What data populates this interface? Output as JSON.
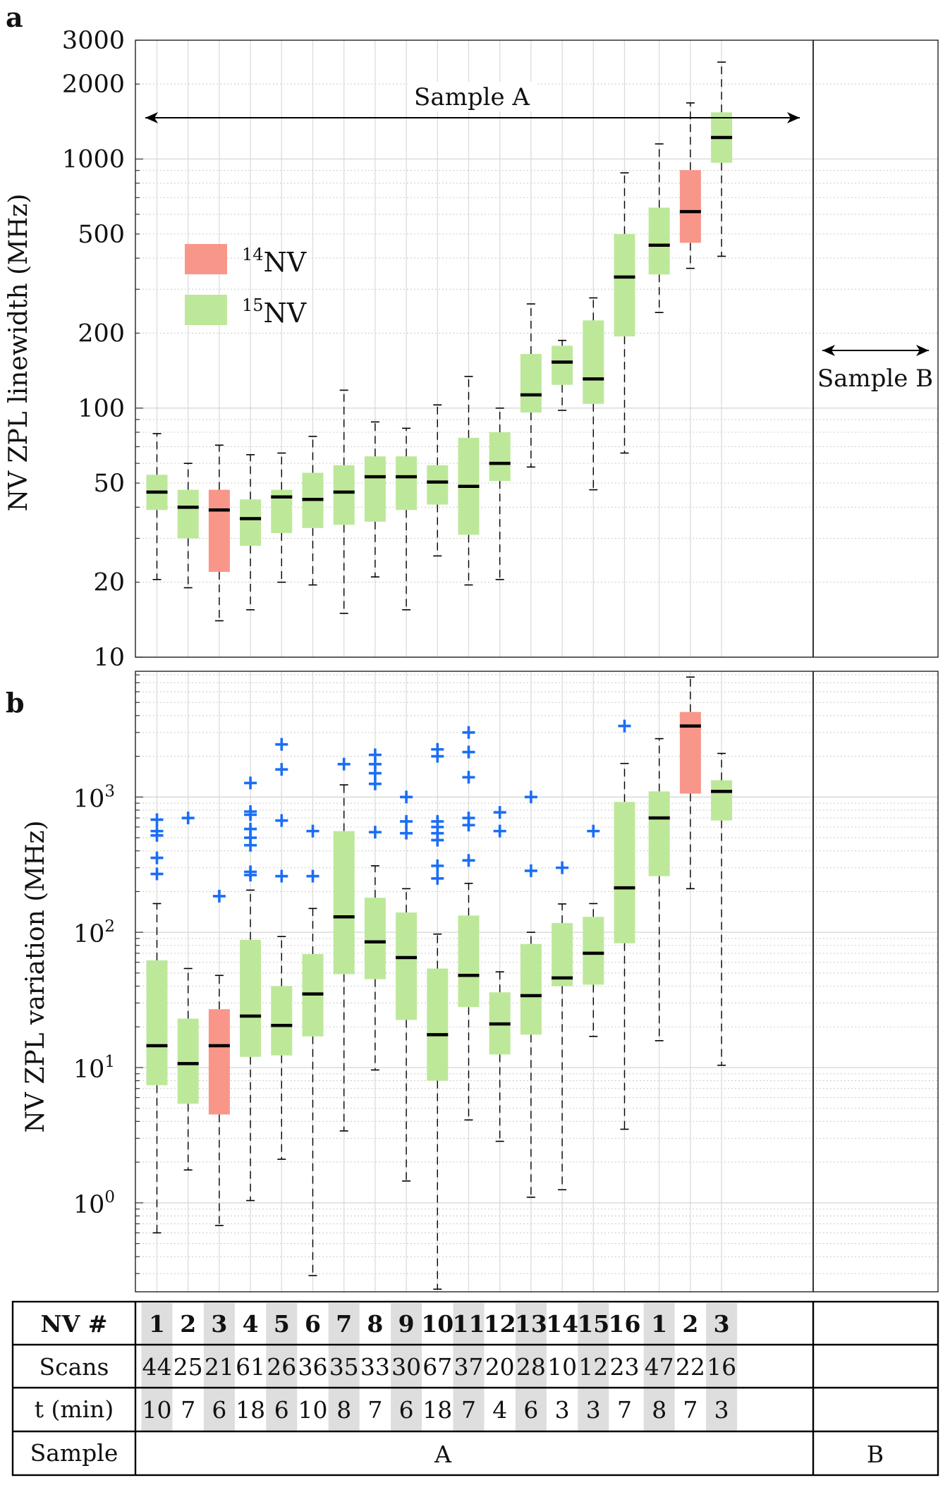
{
  "chart_data": [
    {
      "panel_label": "a",
      "type": "box",
      "ylabel": "NV ZPL linewidth (MHz)",
      "yscale": "log",
      "ylim": [
        10,
        3000
      ],
      "yticks": [
        "10",
        "20",
        "50",
        "100",
        "200",
        "500",
        "1000",
        "2000",
        "3000"
      ],
      "annotations": [
        "Sample A",
        "Sample B"
      ],
      "legend": {
        "position": "left-middle",
        "items": [
          {
            "sup": "14",
            "label": "NV",
            "color": "#f8968a"
          },
          {
            "sup": "15",
            "label": "NV",
            "color": "#bde89a"
          }
        ]
      },
      "boxes": [
        {
          "nv": "1",
          "sample": "A",
          "iso": "15",
          "wlo": 20.5,
          "q1": 39,
          "med": 46,
          "q3": 54,
          "whi": 79
        },
        {
          "nv": "2",
          "sample": "A",
          "iso": "15",
          "wlo": 19,
          "q1": 30,
          "med": 40,
          "q3": 47,
          "whi": 60
        },
        {
          "nv": "3",
          "sample": "A",
          "iso": "14",
          "wlo": 14,
          "q1": 22,
          "med": 39,
          "q3": 47,
          "whi": 71
        },
        {
          "nv": "4",
          "sample": "A",
          "iso": "15",
          "wlo": 15.5,
          "q1": 28,
          "med": 36,
          "q3": 43,
          "whi": 65
        },
        {
          "nv": "5",
          "sample": "A",
          "iso": "15",
          "wlo": 20,
          "q1": 31.5,
          "med": 44,
          "q3": 47,
          "whi": 66
        },
        {
          "nv": "6",
          "sample": "A",
          "iso": "15",
          "wlo": 19.5,
          "q1": 33,
          "med": 43,
          "q3": 55,
          "whi": 77
        },
        {
          "nv": "7",
          "sample": "A",
          "iso": "15",
          "wlo": 15,
          "q1": 34,
          "med": 46,
          "q3": 59,
          "whi": 118
        },
        {
          "nv": "8",
          "sample": "A",
          "iso": "15",
          "wlo": 21,
          "q1": 35,
          "med": 53,
          "q3": 64,
          "whi": 88
        },
        {
          "nv": "9",
          "sample": "A",
          "iso": "15",
          "wlo": 15.5,
          "q1": 39,
          "med": 53,
          "q3": 64,
          "whi": 83
        },
        {
          "nv": "10",
          "sample": "A",
          "iso": "15",
          "wlo": 25.5,
          "q1": 41,
          "med": 50.5,
          "q3": 59,
          "whi": 103
        },
        {
          "nv": "11",
          "sample": "A",
          "iso": "15",
          "wlo": 19.5,
          "q1": 31,
          "med": 48.5,
          "q3": 76,
          "whi": 134
        },
        {
          "nv": "12",
          "sample": "A",
          "iso": "15",
          "wlo": 20.5,
          "q1": 51,
          "med": 60,
          "q3": 80,
          "whi": 100
        },
        {
          "nv": "13",
          "sample": "A",
          "iso": "15",
          "wlo": 58,
          "q1": 96,
          "med": 113,
          "q3": 165,
          "whi": 262
        },
        {
          "nv": "14",
          "sample": "A",
          "iso": "15",
          "wlo": 98,
          "q1": 124,
          "med": 153,
          "q3": 178,
          "whi": 187
        },
        {
          "nv": "15",
          "sample": "A",
          "iso": "15",
          "wlo": 47,
          "q1": 104,
          "med": 131,
          "q3": 225,
          "whi": 277
        },
        {
          "nv": "16",
          "sample": "A",
          "iso": "15",
          "wlo": 66,
          "q1": 194,
          "med": 336,
          "q3": 500,
          "whi": 880
        },
        {
          "nv": "1",
          "sample": "B",
          "iso": "15",
          "wlo": 242,
          "q1": 344,
          "med": 451,
          "q3": 638,
          "whi": 1150
        },
        {
          "nv": "2",
          "sample": "B",
          "iso": "14",
          "wlo": 364,
          "q1": 461,
          "med": 615,
          "q3": 903,
          "whi": 1680
        },
        {
          "nv": "3",
          "sample": "B",
          "iso": "15",
          "wlo": 407,
          "q1": 966,
          "med": 1220,
          "q3": 1540,
          "whi": 2450
        }
      ]
    },
    {
      "panel_label": "b",
      "type": "box",
      "ylabel": "NV ZPL variation (MHz)",
      "yscale": "log",
      "ylim": [
        0.22,
        8500
      ],
      "yticks": [
        {
          "base": "10",
          "exp": "0"
        },
        {
          "base": "10",
          "exp": "1"
        },
        {
          "base": "10",
          "exp": "2"
        },
        {
          "base": "10",
          "exp": "3"
        }
      ],
      "boxes": [
        {
          "nv": "1",
          "sample": "A",
          "iso": "15",
          "wlo": 0.6,
          "q1": 7.4,
          "med": 14.5,
          "q3": 62,
          "whi": 163,
          "out": [
            270,
            355,
            520,
            560,
            680
          ]
        },
        {
          "nv": "2",
          "sample": "A",
          "iso": "15",
          "wlo": 1.75,
          "q1": 5.4,
          "med": 10.7,
          "q3": 23,
          "whi": 54,
          "out": [
            700
          ]
        },
        {
          "nv": "3",
          "sample": "A",
          "iso": "14",
          "wlo": 0.68,
          "q1": 4.5,
          "med": 14.5,
          "q3": 27,
          "whi": 48,
          "out": [
            185
          ]
        },
        {
          "nv": "4",
          "sample": "A",
          "iso": "15",
          "wlo": 1.04,
          "q1": 12,
          "med": 24,
          "q3": 88,
          "whi": 205,
          "out": [
            265,
            280,
            440,
            500,
            580,
            740,
            780,
            1270
          ]
        },
        {
          "nv": "5",
          "sample": "A",
          "iso": "15",
          "wlo": 2.1,
          "q1": 12.3,
          "med": 20.5,
          "q3": 40,
          "whi": 93,
          "out": [
            260,
            670,
            1600,
            2450
          ]
        },
        {
          "nv": "6",
          "sample": "A",
          "iso": "15",
          "wlo": 0.29,
          "q1": 17,
          "med": 35,
          "q3": 69,
          "whi": 150,
          "out": [
            260,
            560
          ]
        },
        {
          "nv": "7",
          "sample": "A",
          "iso": "15",
          "wlo": 3.4,
          "q1": 49,
          "med": 130,
          "q3": 560,
          "whi": 1230,
          "out": [
            1750
          ]
        },
        {
          "nv": "8",
          "sample": "A",
          "iso": "15",
          "wlo": 9.6,
          "q1": 45,
          "med": 85,
          "q3": 180,
          "whi": 310,
          "out": [
            550,
            1250,
            1500,
            1750,
            2050
          ]
        },
        {
          "nv": "9",
          "sample": "A",
          "iso": "15",
          "wlo": 1.45,
          "q1": 22.5,
          "med": 65,
          "q3": 140,
          "whi": 210,
          "out": [
            540,
            660,
            1000
          ]
        },
        {
          "nv": "10",
          "sample": "A",
          "iso": "15",
          "wlo": 0.23,
          "q1": 8,
          "med": 17.5,
          "q3": 54,
          "whi": 97,
          "out": [
            250,
            310,
            480,
            540,
            600,
            660,
            2000,
            2250
          ]
        },
        {
          "nv": "11",
          "sample": "A",
          "iso": "15",
          "wlo": 4.1,
          "q1": 28,
          "med": 48,
          "q3": 133,
          "whi": 230,
          "out": [
            340,
            620,
            700,
            1400,
            2150,
            3000
          ]
        },
        {
          "nv": "12",
          "sample": "A",
          "iso": "15",
          "wlo": 2.85,
          "q1": 12.5,
          "med": 21,
          "q3": 36,
          "whi": 51,
          "out": [
            560,
            770
          ]
        },
        {
          "nv": "13",
          "sample": "A",
          "iso": "15",
          "wlo": 1.1,
          "q1": 17.5,
          "med": 34,
          "q3": 82,
          "whi": 100,
          "out": [
            285,
            1000
          ]
        },
        {
          "nv": "14",
          "sample": "A",
          "iso": "15",
          "wlo": 1.25,
          "q1": 40,
          "med": 46,
          "q3": 117,
          "whi": 162,
          "out": [
            300
          ]
        },
        {
          "nv": "15",
          "sample": "A",
          "iso": "15",
          "wlo": 17,
          "q1": 41,
          "med": 70,
          "q3": 130,
          "whi": 163,
          "out": [
            560
          ]
        },
        {
          "nv": "16",
          "sample": "A",
          "iso": "15",
          "wlo": 3.5,
          "q1": 83,
          "med": 213,
          "q3": 920,
          "whi": 1770,
          "out": [
            3350
          ]
        },
        {
          "nv": "1",
          "sample": "B",
          "iso": "15",
          "wlo": 15.8,
          "q1": 260,
          "med": 700,
          "q3": 1100,
          "whi": 2700,
          "out": []
        },
        {
          "nv": "2",
          "sample": "B",
          "iso": "14",
          "wlo": 210,
          "q1": 1060,
          "med": 3350,
          "q3": 4250,
          "whi": 7700,
          "out": []
        },
        {
          "nv": "3",
          "sample": "B",
          "iso": "15",
          "wlo": 10.4,
          "q1": 670,
          "med": 1100,
          "q3": 1330,
          "whi": 2100,
          "out": []
        }
      ]
    }
  ],
  "table": {
    "row_labels": {
      "nv": "NV #",
      "scans": "Scans",
      "t": "t (min)",
      "sample": "Sample"
    },
    "nv": [
      "1",
      "2",
      "3",
      "4",
      "5",
      "6",
      "7",
      "8",
      "9",
      "10",
      "11",
      "12",
      "13",
      "14",
      "15",
      "16",
      "1",
      "2",
      "3"
    ],
    "scans": [
      "44",
      "25",
      "21",
      "61",
      "26",
      "36",
      "35",
      "33",
      "30",
      "67",
      "37",
      "20",
      "28",
      "10",
      "12",
      "23",
      "47",
      "22",
      "16"
    ],
    "t": [
      "10",
      "7",
      "6",
      "18",
      "6",
      "10",
      "8",
      "7",
      "6",
      "18",
      "7",
      "4",
      "6",
      "3",
      "3",
      "7",
      "8",
      "7",
      "3"
    ],
    "samples": [
      "A",
      "B"
    ]
  },
  "colors": {
    "n14": "#f8968a",
    "n15": "#bde89a",
    "outlier": "#1a6ef5",
    "table_shade": "#dedede"
  }
}
